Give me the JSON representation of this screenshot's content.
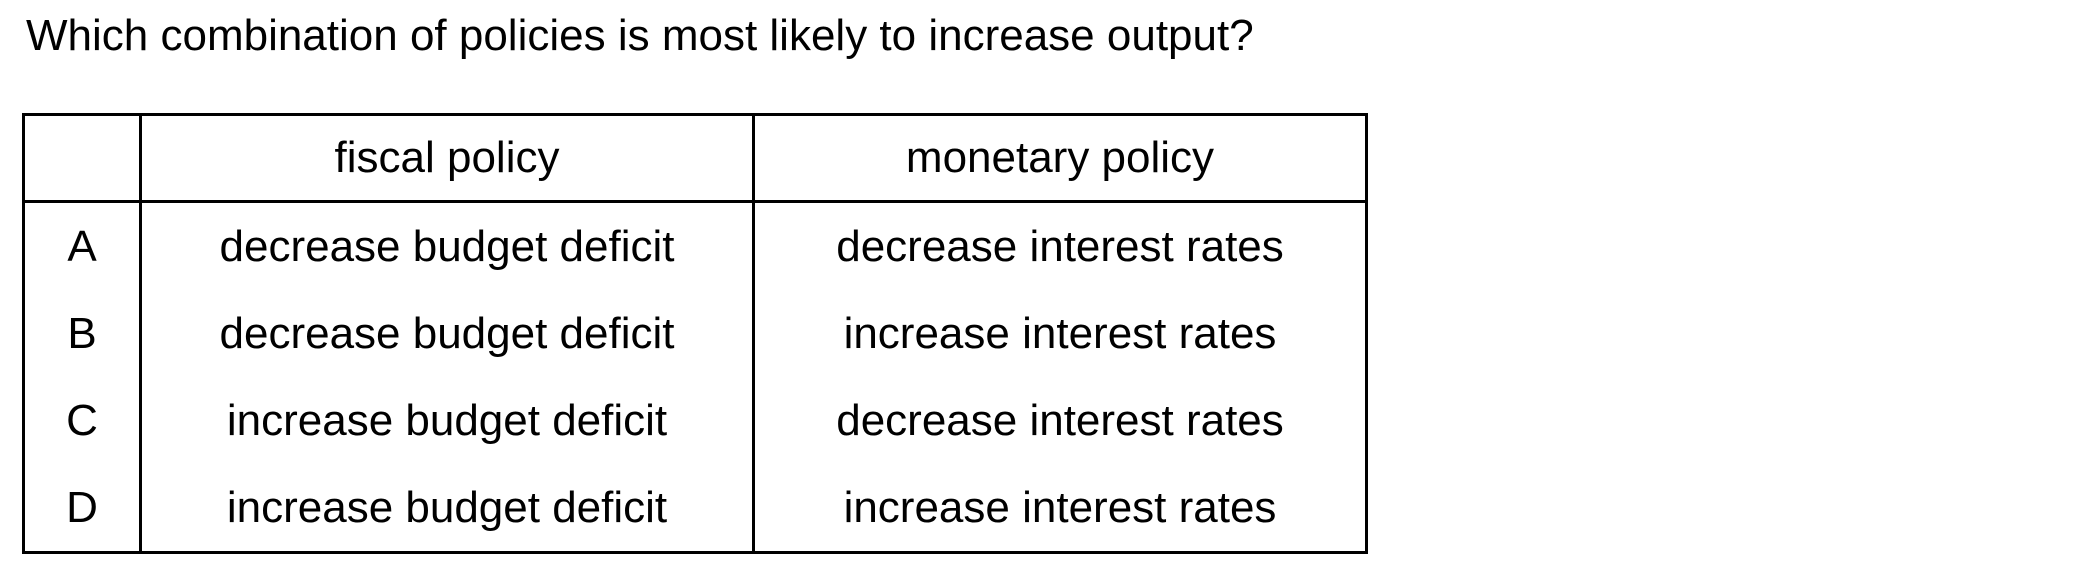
{
  "question": "Which combination of policies is most likely to increase output?",
  "table": {
    "headers": [
      "",
      "fiscal policy",
      "monetary policy"
    ],
    "rows": [
      {
        "letter": "A",
        "fiscal": "decrease budget deficit",
        "monetary": "decrease interest rates"
      },
      {
        "letter": "B",
        "fiscal": "decrease budget deficit",
        "monetary": "increase interest rates"
      },
      {
        "letter": "C",
        "fiscal": "increase budget deficit",
        "monetary": "decrease interest rates"
      },
      {
        "letter": "D",
        "fiscal": "increase budget deficit",
        "monetary": "increase interest rates"
      }
    ]
  }
}
